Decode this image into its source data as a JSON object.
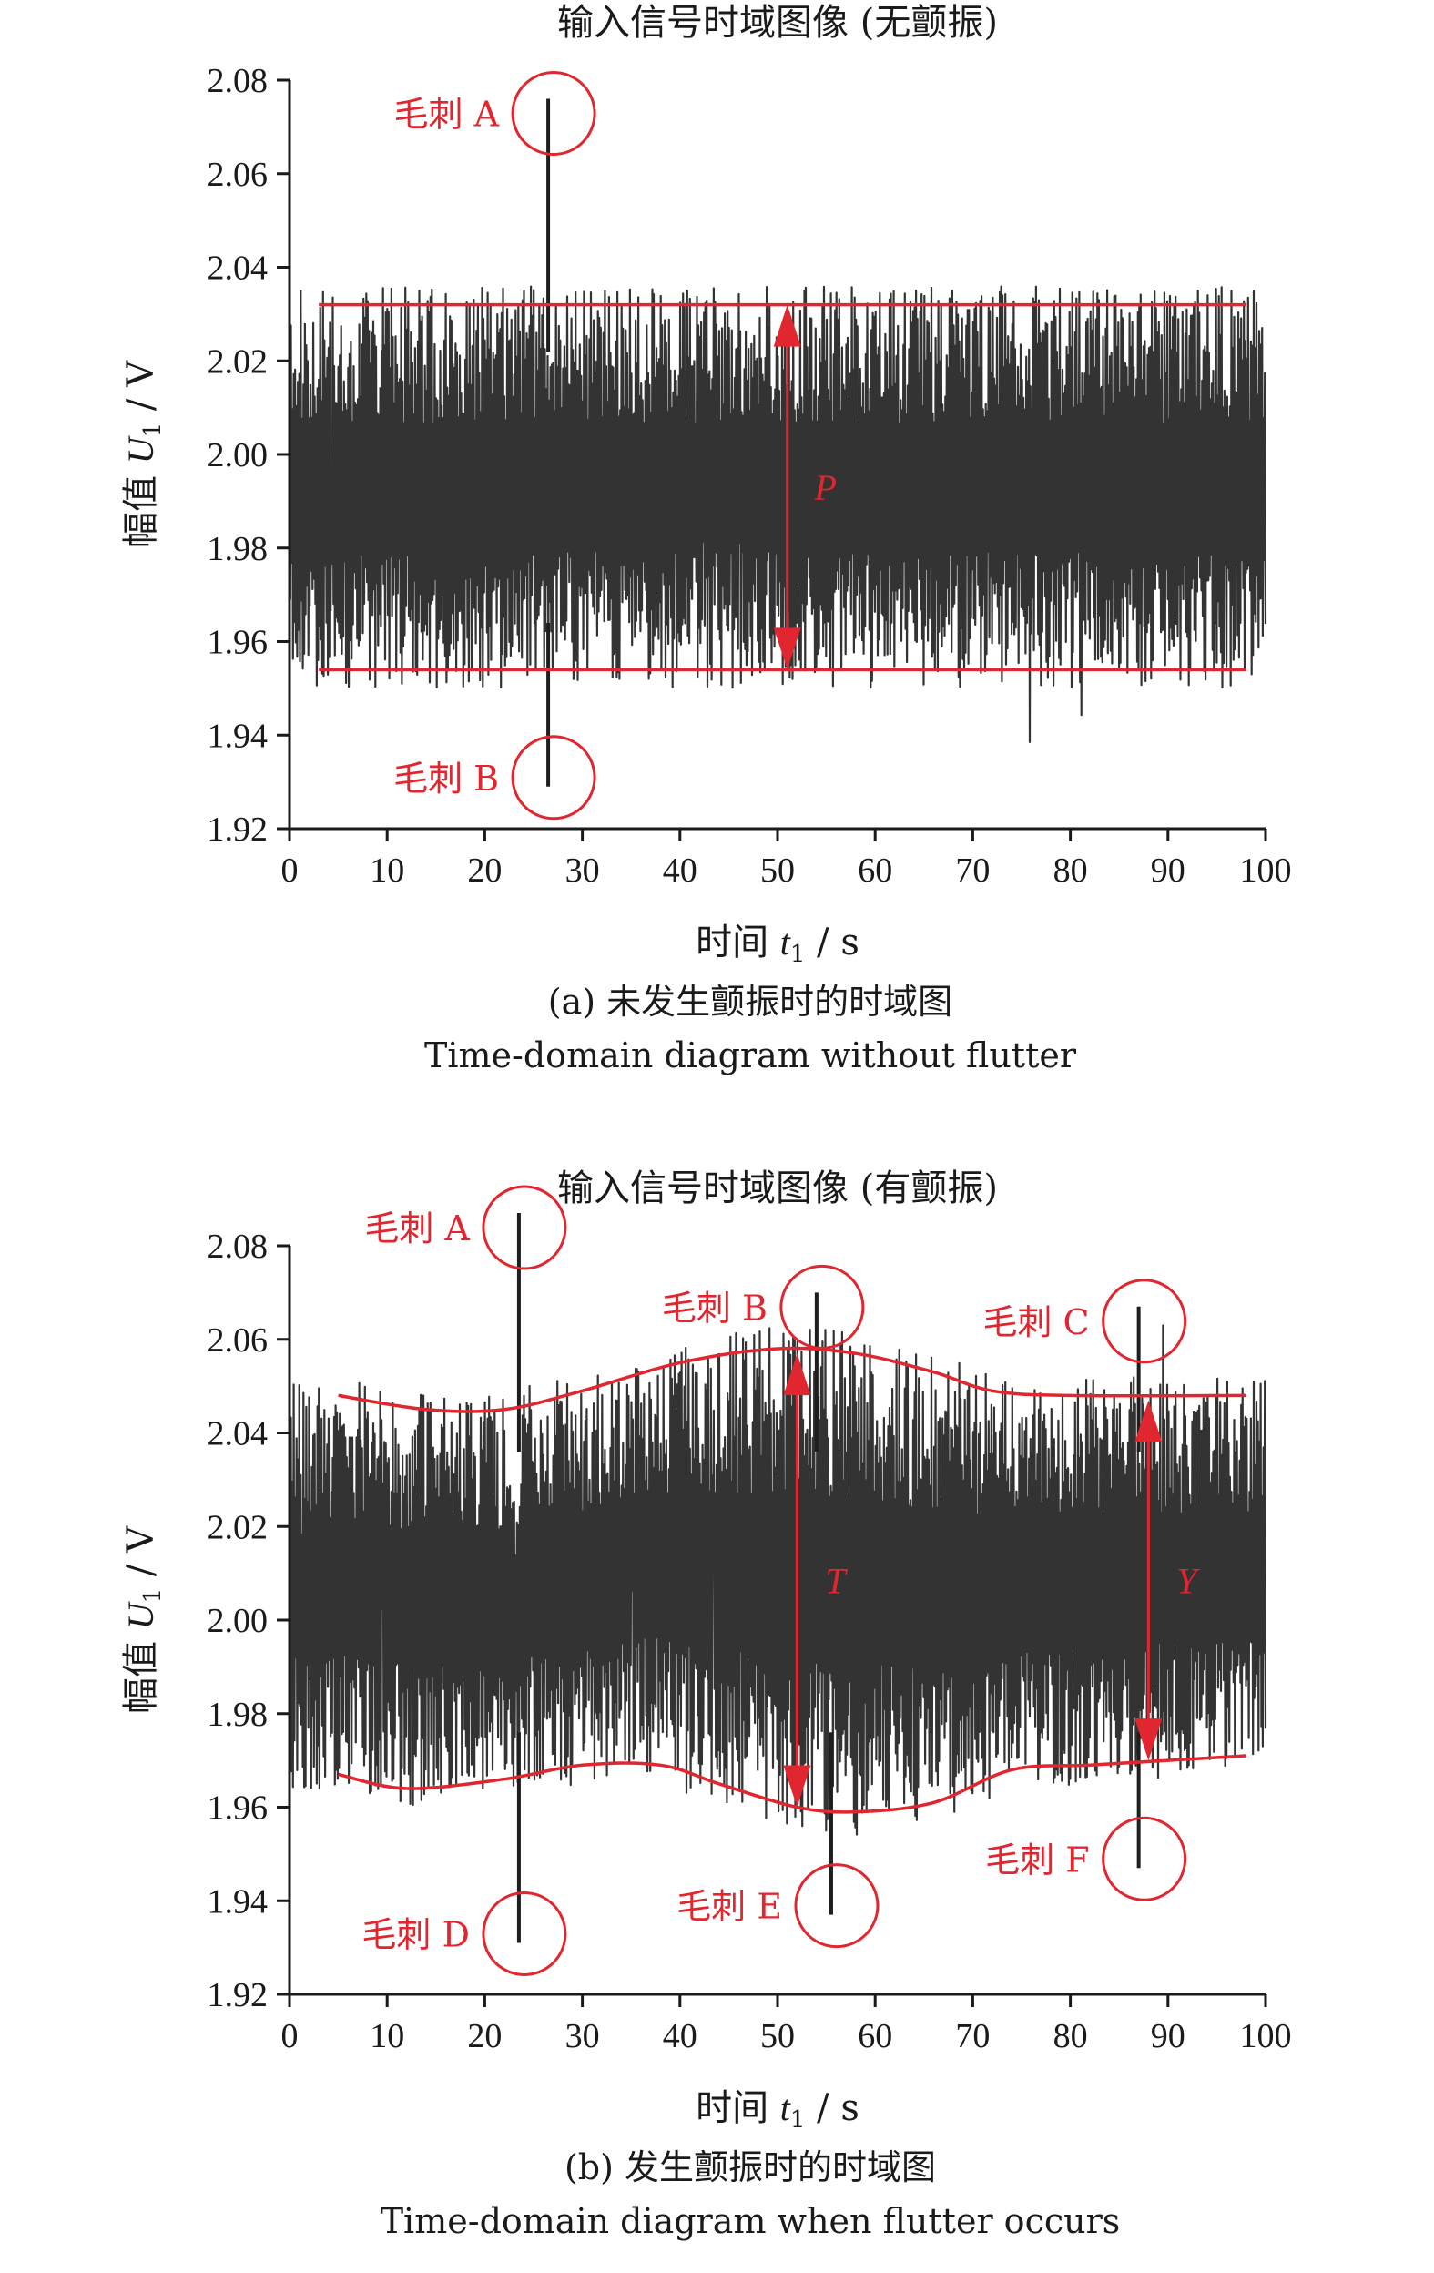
{
  "chart_data": [
    {
      "type": "line",
      "title": "输入信号时域图像 (无颤振)",
      "xlabel_main": "时间",
      "xlabel_var": "t",
      "xlabel_sub": "1",
      "xlabel_unit": " / s",
      "ylabel_main": "幅值",
      "ylabel_var": "U",
      "ylabel_sub": "1",
      "ylabel_unit": " / V",
      "xlim": [
        0,
        100
      ],
      "ylim": [
        1.92,
        2.08
      ],
      "xticks": [
        "0",
        "10",
        "20",
        "30",
        "40",
        "50",
        "60",
        "70",
        "80",
        "90",
        "100"
      ],
      "yticks": [
        "1.92",
        "1.94",
        "1.96",
        "1.98",
        "2.00",
        "2.02",
        "2.04",
        "2.06",
        "2.08"
      ],
      "caption_cn": "(a) 未发生颤振时的时域图",
      "caption_en": "Time-domain diagram without flutter",
      "signal": {
        "center": 2.0,
        "band_upper": 2.032,
        "band_lower": 1.954,
        "color": "#333333"
      },
      "envelope": {
        "color": "#e0262e",
        "upper": [
          [
            3,
            2.032
          ],
          [
            98,
            2.032
          ]
        ],
        "lower": [
          [
            3,
            1.954
          ],
          [
            98,
            1.954
          ]
        ]
      },
      "spikes": [
        {
          "name": "毛刺 A",
          "x": 26.5,
          "y": 2.076
        },
        {
          "name": "毛刺 B",
          "x": 26.5,
          "y": 1.929
        }
      ],
      "measure_arrows": [
        {
          "label": "P",
          "x": 51,
          "from": 2.032,
          "to": 1.954
        }
      ]
    },
    {
      "type": "line",
      "title": "输入信号时域图像 (有颤振)",
      "xlabel_main": "时间",
      "xlabel_var": "t",
      "xlabel_sub": "1",
      "xlabel_unit": " / s",
      "ylabel_main": "幅值",
      "ylabel_var": "U",
      "ylabel_sub": "1",
      "ylabel_unit": " / V",
      "xlim": [
        0,
        100
      ],
      "ylim": [
        1.92,
        2.08
      ],
      "xticks": [
        "0",
        "10",
        "20",
        "30",
        "40",
        "50",
        "60",
        "70",
        "80",
        "90",
        "100"
      ],
      "yticks": [
        "1.92",
        "1.94",
        "1.96",
        "1.98",
        "2.00",
        "2.02",
        "2.04",
        "2.06",
        "2.08"
      ],
      "caption_cn": "(b) 发生颤振时的时域图",
      "caption_en": "Time-domain diagram when flutter occurs",
      "signal": {
        "center": 2.005,
        "band_upper": 2.046,
        "band_lower": 1.966,
        "color": "#333333"
      },
      "envelope": {
        "color": "#e0262e",
        "upper": [
          [
            5,
            2.048
          ],
          [
            14,
            2.045
          ],
          [
            22,
            2.045
          ],
          [
            30,
            2.049
          ],
          [
            40,
            2.055
          ],
          [
            50,
            2.058
          ],
          [
            58,
            2.057
          ],
          [
            66,
            2.053
          ],
          [
            72,
            2.049
          ],
          [
            80,
            2.048
          ],
          [
            98,
            2.048
          ]
        ],
        "lower": [
          [
            5,
            1.967
          ],
          [
            12,
            1.964
          ],
          [
            22,
            1.966
          ],
          [
            30,
            1.969
          ],
          [
            38,
            1.969
          ],
          [
            44,
            1.965
          ],
          [
            52,
            1.96
          ],
          [
            58,
            1.959
          ],
          [
            66,
            1.961
          ],
          [
            74,
            1.968
          ],
          [
            82,
            1.969
          ],
          [
            90,
            1.97
          ],
          [
            98,
            1.971
          ]
        ]
      },
      "spikes": [
        {
          "name": "毛刺 A",
          "x": 23.5,
          "y": 2.087
        },
        {
          "name": "毛刺 B",
          "x": 54,
          "y": 2.07
        },
        {
          "name": "毛刺 C",
          "x": 87,
          "y": 2.067
        },
        {
          "name": "毛刺 D",
          "x": 23.5,
          "y": 1.931
        },
        {
          "name": "毛刺 E",
          "x": 55.5,
          "y": 1.937
        },
        {
          "name": "毛刺 F",
          "x": 87,
          "y": 1.947
        }
      ],
      "measure_arrows": [
        {
          "label": "T",
          "x": 52,
          "from": 2.057,
          "to": 1.96
        },
        {
          "label": "Y",
          "x": 88,
          "from": 2.047,
          "to": 1.97
        }
      ]
    }
  ]
}
